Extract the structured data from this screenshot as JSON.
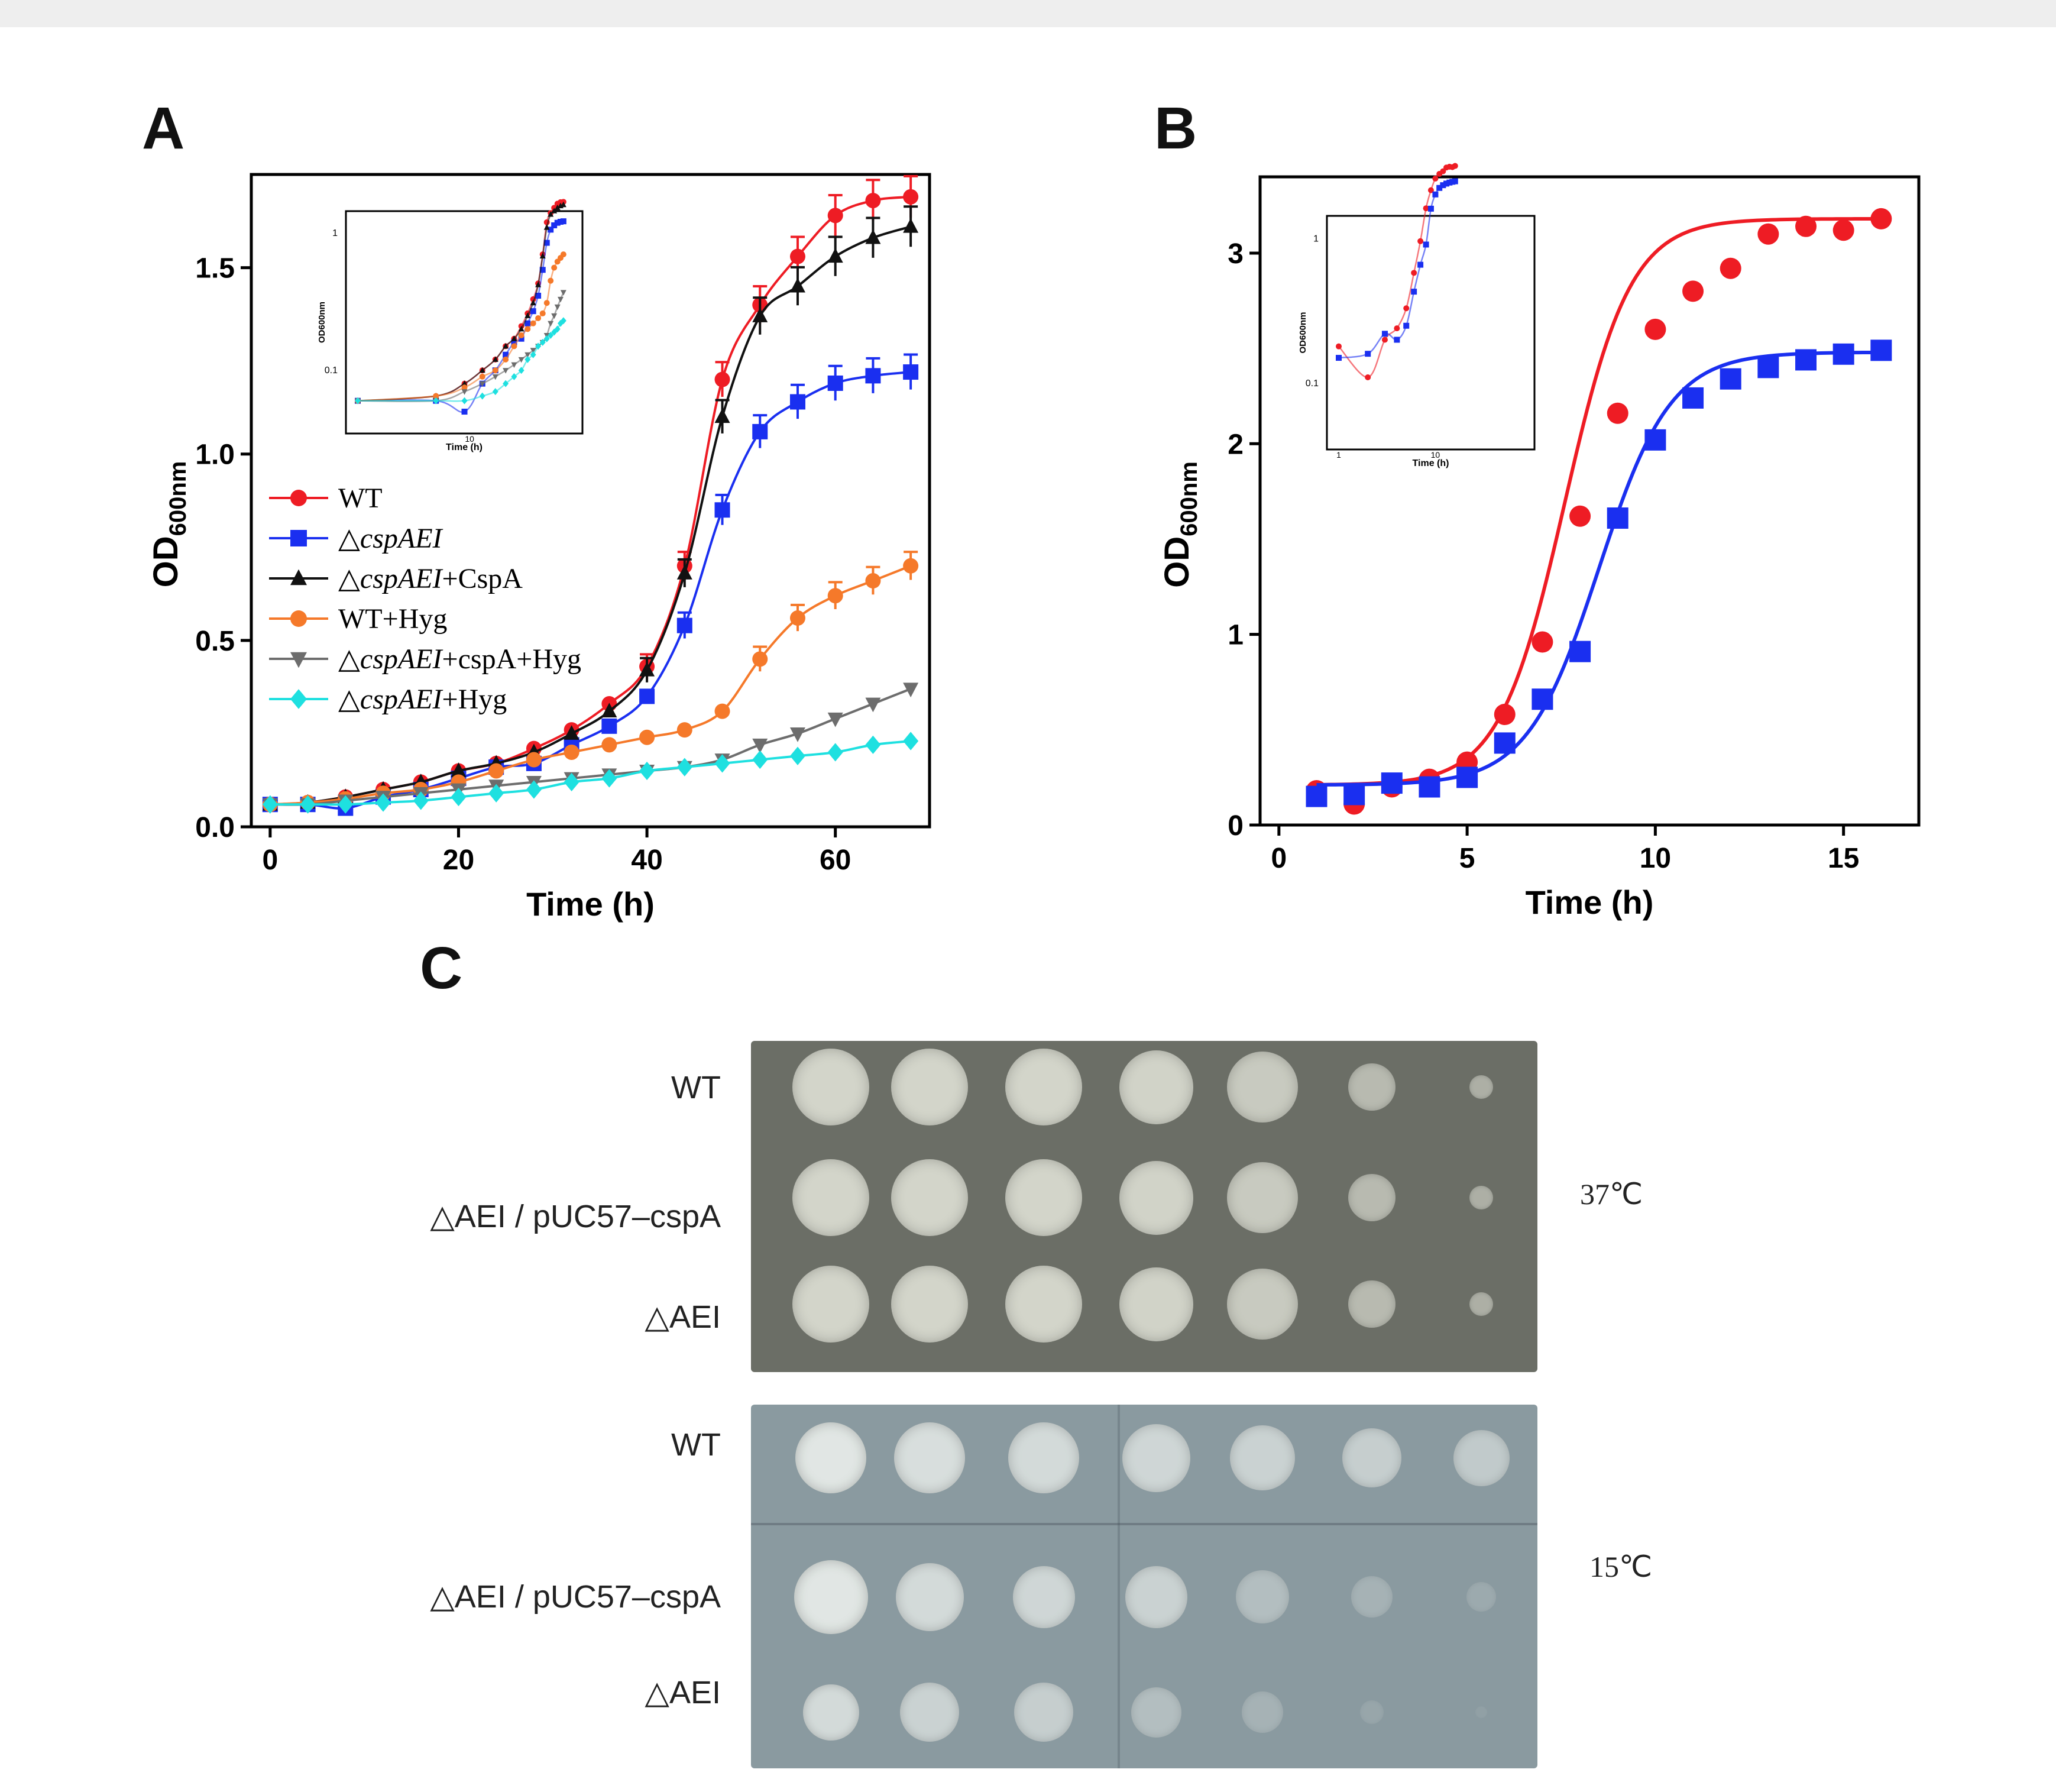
{
  "panels": {
    "a": "A",
    "b": "B",
    "c": "C"
  },
  "chart_data": [
    {
      "id": "A",
      "type": "line",
      "xlabel": "Time  (h)",
      "ylabel": "OD600nm",
      "ylabel_main": "OD",
      "ylabel_sub": "600nm",
      "xlim": [
        -2,
        70
      ],
      "ylim": [
        0,
        1.75
      ],
      "xticks": [
        0,
        20,
        40,
        60
      ],
      "xtick_labels": [
        "0",
        "20",
        "40",
        "60"
      ],
      "yticks": [
        0,
        0.5,
        1.0,
        1.5
      ],
      "ytick_labels": [
        "0.0",
        "0.5",
        "1.0",
        "1.5"
      ],
      "legend_position": "left-middle",
      "x": [
        0,
        4,
        8,
        12,
        16,
        20,
        24,
        28,
        32,
        36,
        40,
        44,
        48,
        52,
        56,
        60,
        64,
        68
      ],
      "series": [
        {
          "name": "WT",
          "color": "#ee1c24",
          "marker": "circle",
          "values": [
            0.06,
            0.065,
            0.08,
            0.1,
            0.12,
            0.15,
            0.17,
            0.21,
            0.26,
            0.33,
            0.43,
            0.7,
            1.2,
            1.4,
            1.53,
            1.64,
            1.68,
            1.69
          ]
        },
        {
          "name": "△cspAEI",
          "color": "#1a2ff0",
          "marker": "square",
          "values": [
            0.06,
            0.06,
            0.05,
            0.08,
            0.1,
            0.13,
            0.16,
            0.17,
            0.22,
            0.27,
            0.35,
            0.54,
            0.85,
            1.06,
            1.14,
            1.19,
            1.21,
            1.22
          ]
        },
        {
          "name": "△cspAEI+CspA",
          "color": "#111111",
          "marker": "triangle-up",
          "values": [
            0.06,
            0.065,
            0.08,
            0.1,
            0.12,
            0.15,
            0.17,
            0.2,
            0.25,
            0.31,
            0.42,
            0.68,
            1.1,
            1.37,
            1.45,
            1.53,
            1.58,
            1.61
          ]
        },
        {
          "name": "WT+Hyg",
          "color": "#f5792a",
          "marker": "circle",
          "values": [
            0.06,
            0.065,
            0.075,
            0.09,
            0.1,
            0.12,
            0.15,
            0.18,
            0.2,
            0.22,
            0.24,
            0.26,
            0.31,
            0.45,
            0.56,
            0.62,
            0.66,
            0.7
          ]
        },
        {
          "name": "△cspAEI+cspA+Hyg",
          "color": "#6d6d6d",
          "marker": "triangle-down",
          "values": [
            0.06,
            0.06,
            0.07,
            0.08,
            0.09,
            0.1,
            0.11,
            0.12,
            0.13,
            0.14,
            0.15,
            0.16,
            0.18,
            0.22,
            0.25,
            0.29,
            0.33,
            0.37
          ]
        },
        {
          "name": "△cspAEI+Hyg",
          "color": "#1ee0e0",
          "marker": "diamond",
          "values": [
            0.06,
            0.06,
            0.06,
            0.065,
            0.07,
            0.08,
            0.09,
            0.1,
            0.12,
            0.13,
            0.15,
            0.16,
            0.17,
            0.18,
            0.19,
            0.2,
            0.22,
            0.23
          ]
        }
      ],
      "inset": {
        "xlabel": "Time  (h)",
        "ylabel": "OD600nm",
        "scale": "log",
        "tick_labels": {
          "x_mid": "10",
          "y_low": "0.1",
          "y_high": "1"
        }
      }
    },
    {
      "id": "B",
      "type": "line",
      "xlabel": "Time (h)",
      "ylabel": "OD600nm",
      "ylabel_main": "OD",
      "ylabel_sub": "600nm",
      "xlim": [
        -0.5,
        17
      ],
      "ylim": [
        0,
        3.4
      ],
      "xticks": [
        0,
        5,
        10,
        15
      ],
      "xtick_labels": [
        "0",
        "5",
        "10",
        "15"
      ],
      "yticks": [
        0,
        1,
        2,
        3
      ],
      "ytick_labels": [
        "0",
        "1",
        "2",
        "3"
      ],
      "x": [
        1,
        2,
        3,
        4,
        5,
        6,
        7,
        8,
        9,
        10,
        11,
        12,
        13,
        14,
        15,
        16
      ],
      "series": [
        {
          "name": "WT",
          "color": "#ee1c24",
          "marker": "circle",
          "values": [
            0.18,
            0.11,
            0.2,
            0.24,
            0.33,
            0.58,
            0.96,
            1.62,
            2.16,
            2.6,
            2.8,
            2.92,
            3.1,
            3.14,
            3.12,
            3.18
          ],
          "fit": {
            "base": 0.21,
            "top": 3.18,
            "mid": 7.6,
            "slope": 1.15
          }
        },
        {
          "name": "△cspAEI",
          "color": "#1a2ff0",
          "marker": "square",
          "values": [
            0.15,
            0.16,
            0.22,
            0.2,
            0.25,
            0.43,
            0.66,
            0.91,
            1.61,
            2.02,
            2.24,
            2.34,
            2.4,
            2.44,
            2.47,
            2.49
          ],
          "fit": {
            "base": 0.21,
            "top": 2.48,
            "mid": 8.5,
            "slope": 1.05
          }
        }
      ],
      "inset": {
        "xlabel": "Time (h)",
        "ylabel": "OD600nm",
        "scale": "log",
        "tick_labels": {
          "x_low": "1",
          "x_mid": "10",
          "y_low": "0.1",
          "y_high": "1"
        }
      }
    }
  ],
  "spot_assay": {
    "rows": [
      "WT",
      "△AEI / pUC57–cspA",
      "△AEI"
    ],
    "plate_37": {
      "temperature": "37℃",
      "plate_color": "#6b6e66",
      "spot_color": "#d9dbd0"
    },
    "plate_15": {
      "temperature": "15℃",
      "plate_color": "#8a9aa0",
      "spot_color": "#e6ebe8"
    }
  }
}
